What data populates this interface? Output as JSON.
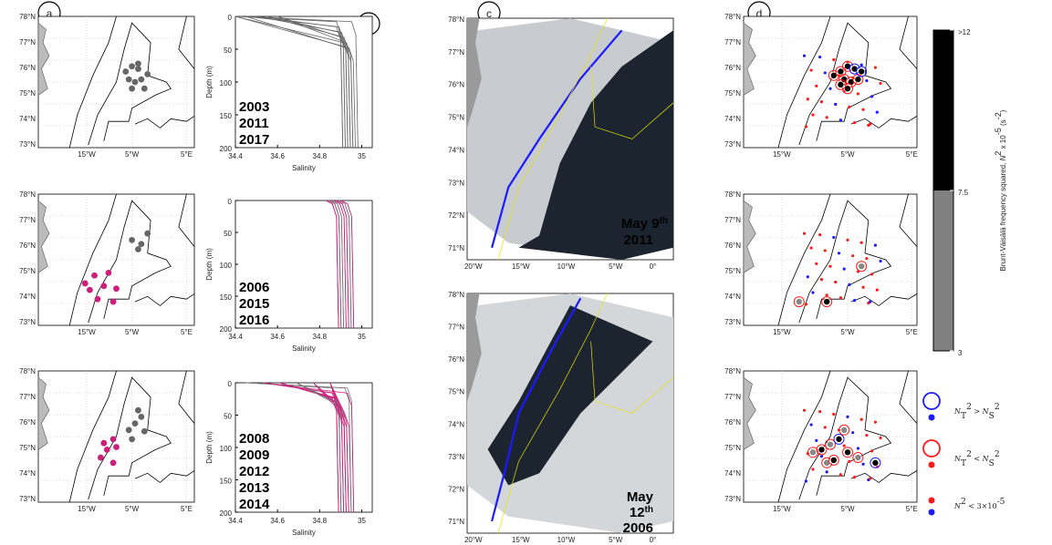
{
  "map_ticks": {
    "lat": [
      "78°N",
      "77°N",
      "76°N",
      "75°N",
      "74°N",
      "73°N"
    ],
    "lon": [
      "15°W",
      "5°W",
      "5°E"
    ]
  },
  "panel_a": {
    "label": "a"
  },
  "panel_b": {
    "label": "b",
    "x_label": "Salinity",
    "y_label": "Depth (m)",
    "xlim": [
      34.4,
      35.05
    ],
    "xticks": [
      34.4,
      34.6,
      34.8,
      35
    ],
    "ylim": [
      0,
      200
    ],
    "yticks": [
      0,
      50,
      100,
      150,
      200
    ],
    "years": [
      [
        "2003",
        "2011",
        "2017"
      ],
      [
        "2006",
        "2015",
        "2016"
      ],
      [
        "2008",
        "2009",
        "2012",
        "2013",
        "2014"
      ]
    ]
  },
  "panel_c": {
    "label": "c",
    "lat": [
      "78°N",
      "77°N",
      "76°N",
      "75°N",
      "74°N",
      "73°N",
      "72°N",
      "71°N"
    ],
    "lon": [
      "20°W",
      "15°W",
      "10°W",
      "5°W",
      "0°"
    ],
    "dates": [
      {
        "month_day": "May 9",
        "suffix": "th",
        "year": "2011"
      },
      {
        "month_day": "May",
        "day": "12",
        "suffix": "th",
        "year": "2006"
      }
    ]
  },
  "panel_d": {
    "label": "d"
  },
  "colorbar": {
    "title_parts": [
      {
        "t": "Brunt-Väisälä frequency squared, "
      },
      {
        "t": "N",
        "italic": true
      },
      {
        "t": "2",
        "sup": true
      },
      {
        "t": " x 10"
      },
      {
        "t": "-5",
        "sup": true
      },
      {
        "t": " (s"
      },
      {
        "t": "-2",
        "sup": true
      },
      {
        "t": ")"
      }
    ],
    "range": [
      3,
      12
    ],
    "ticks": [
      {
        "value": 12,
        "label": ">12"
      },
      7.5,
      3
    ],
    "segments": [
      {
        "from": 3,
        "to": 7.5,
        "color": "#808080"
      },
      {
        "from": 7.5,
        "to": 12,
        "color": "#000000"
      }
    ]
  },
  "legend": [
    {
      "parts": [
        {
          "t": "N",
          "italic": true
        },
        {
          "t": "T",
          "sub": true
        },
        {
          "t": "2",
          "sup": true
        },
        {
          "t": " > "
        },
        {
          "t": "N",
          "italic": true
        },
        {
          "t": "S",
          "sub": true
        },
        {
          "t": "2",
          "sup": true
        }
      ],
      "color": "#1a1aff"
    },
    {
      "parts": [
        {
          "t": "N",
          "italic": true
        },
        {
          "t": "T",
          "sub": true
        },
        {
          "t": "2",
          "sup": true
        },
        {
          "t": " < "
        },
        {
          "t": "N",
          "italic": true
        },
        {
          "t": "S",
          "sub": true
        },
        {
          "t": "2",
          "sup": true
        }
      ],
      "color": "#ff1a1a"
    },
    {
      "parts": [
        {
          "t": "N",
          "italic": true
        },
        {
          "t": "2",
          "sup": true
        },
        {
          "t": " < 3×10"
        },
        {
          "t": "-5",
          "sup": true
        }
      ],
      "color": "mixed"
    }
  ]
}
